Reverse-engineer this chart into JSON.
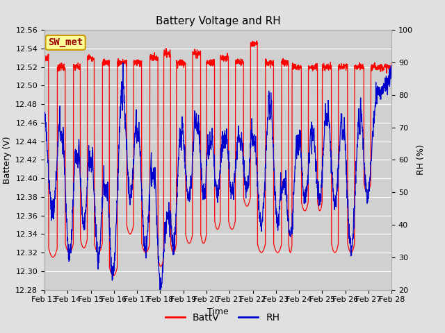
{
  "title": "Battery Voltage and RH",
  "xlabel": "Time",
  "ylabel_left": "Battery (V)",
  "ylabel_right": "RH (%)",
  "station_label": "SW_met",
  "batt_ylim": [
    12.28,
    12.56
  ],
  "rh_ylim": [
    20,
    100
  ],
  "batt_yticks": [
    12.28,
    12.3,
    12.32,
    12.34,
    12.36,
    12.38,
    12.4,
    12.42,
    12.44,
    12.46,
    12.48,
    12.5,
    12.52,
    12.54,
    12.56
  ],
  "rh_yticks": [
    20,
    30,
    40,
    50,
    60,
    70,
    80,
    90,
    100
  ],
  "xtick_labels": [
    "Feb 13",
    "Feb 14",
    "Feb 15",
    "Feb 16",
    "Feb 17",
    "Feb 18",
    "Feb 19",
    "Feb 20",
    "Feb 21",
    "Feb 22",
    "Feb 23",
    "Feb 24",
    "Feb 25",
    "Feb 26",
    "Feb 27",
    "Feb 28"
  ],
  "batt_color": "#ff0000",
  "rh_color": "#0000cc",
  "fig_bg_color": "#e0e0e0",
  "plot_bg_color": "#d0d0d0",
  "grid_color": "#ffffff",
  "title_fontsize": 11,
  "axis_label_fontsize": 9,
  "tick_fontsize": 8,
  "legend_fontsize": 10,
  "station_fontsize": 10,
  "station_bg": "#ffff99",
  "station_border": "#cc9900",
  "station_text_color": "#990000"
}
